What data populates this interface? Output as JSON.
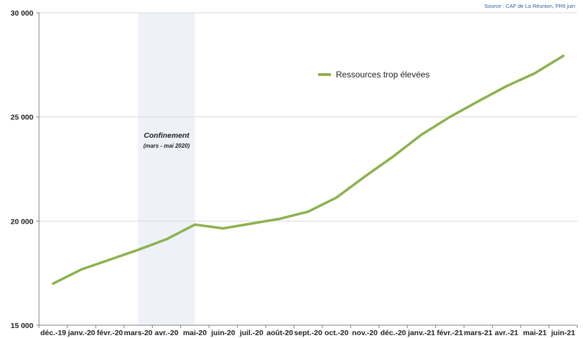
{
  "source": "Source : CAF de La Réunion, FR6 juin",
  "chart_data": {
    "type": "line",
    "categories": [
      "déc.-19",
      "janv.-20",
      "févr.-20",
      "mars-20",
      "avr.-20",
      "mai-20",
      "juin-20",
      "juil.-20",
      "août-20",
      "sept.-20",
      "oct.-20",
      "nov.-20",
      "déc.-20",
      "janv.-21",
      "févr.-21",
      "mars-21",
      "avr.-21",
      "mai-21",
      "juin-21"
    ],
    "series": [
      {
        "name": "Ressources trop élevées",
        "color": "#8db14e",
        "values": [
          17000,
          17680,
          18150,
          18620,
          19130,
          19830,
          19650,
          19880,
          20110,
          20450,
          21130,
          22140,
          23100,
          24150,
          25000,
          25750,
          26480,
          27100,
          27930
        ]
      }
    ],
    "ylim": [
      15000,
      30000
    ],
    "yticks": [
      15000,
      20000,
      25000,
      30000
    ],
    "ytick_labels": [
      "15 000",
      "20 000",
      "25 000",
      "30 000"
    ],
    "grid": "horizontal",
    "legend_position": "top-right",
    "annotation": {
      "title": "Confinement",
      "subtitle": "(mars - mai 2020)",
      "from_category": "mars-20",
      "to_category": "mai-20",
      "shade_color": "#eef2f8"
    }
  }
}
